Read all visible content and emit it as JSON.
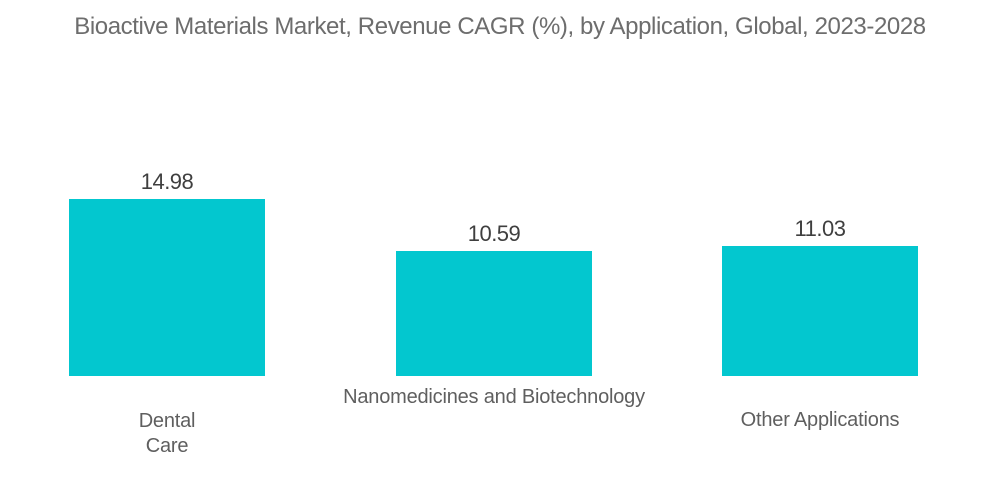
{
  "chart_data": {
    "type": "bar",
    "title": "Bioactive Materials Market, Revenue CAGR (%), by Application, Global, 2023-2028",
    "categories": [
      "Dental Care",
      "Nanomedicines and Biotechnology",
      "Other Applications"
    ],
    "values": [
      14.98,
      10.59,
      11.03
    ],
    "value_labels": [
      "14.98",
      "10.59",
      "11.03"
    ],
    "category_display": [
      "Dental\nCare",
      "Nanomedicines and Biotechnology",
      "Other Applications"
    ],
    "xlabel": "",
    "ylabel": "",
    "ylim": [
      0,
      15
    ],
    "bar_color": "#03c7cf",
    "title_color": "#6d6d6d",
    "value_label_color": "#3f3f3f",
    "category_label_color": "#5f5f5f",
    "background_color": "#ffffff",
    "legend": false,
    "gridlines": false,
    "axis_lines": false
  }
}
